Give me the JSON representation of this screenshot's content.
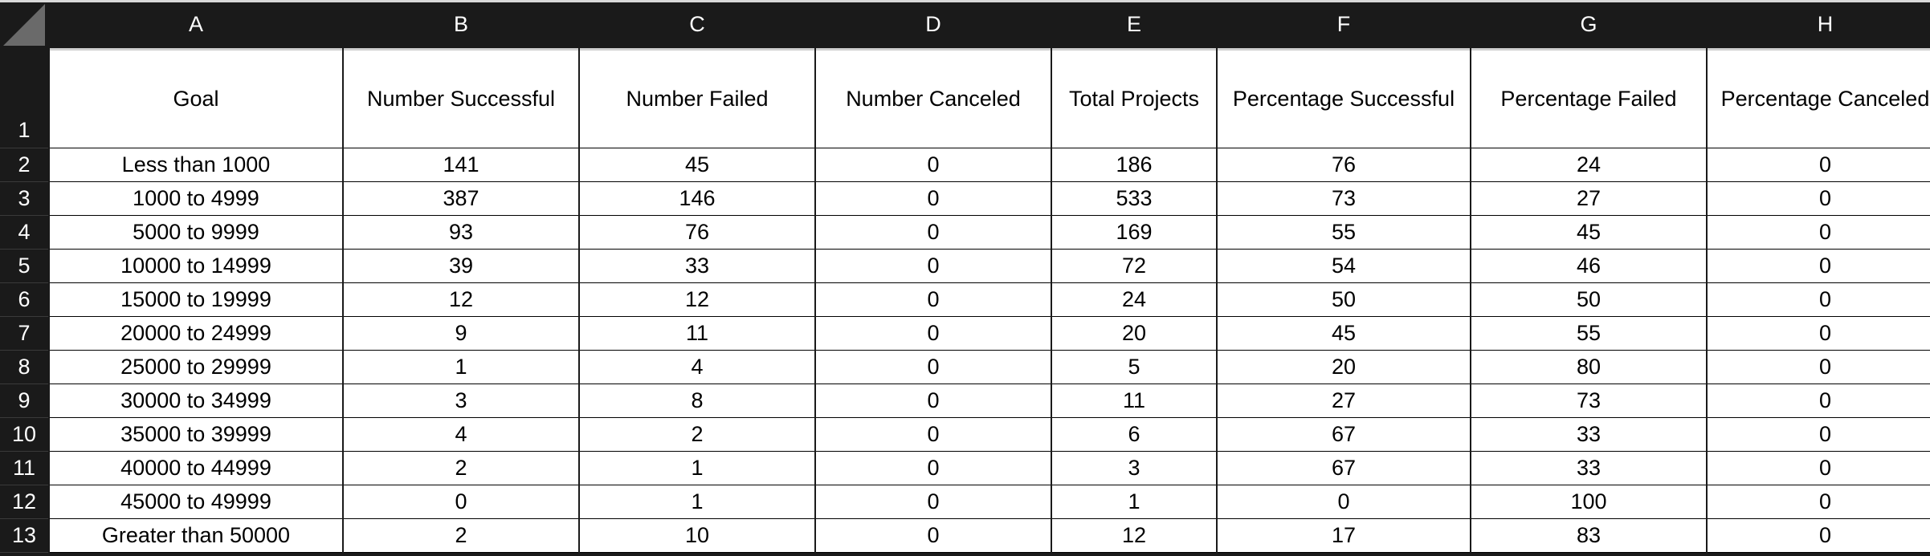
{
  "columns": [
    "A",
    "B",
    "C",
    "D",
    "E",
    "F",
    "G",
    "H"
  ],
  "row_numbers": [
    "1",
    "2",
    "3",
    "4",
    "5",
    "6",
    "7",
    "8",
    "9",
    "10",
    "11",
    "12",
    "13"
  ],
  "headers": [
    "Goal",
    "Number Successful",
    "Number Failed",
    "Number Canceled",
    "Total Projects",
    "Percentage Successful",
    "Percentage Failed",
    "Percentage Canceled"
  ],
  "rows": [
    [
      "Less than 1000",
      "141",
      "45",
      "0",
      "186",
      "76",
      "24",
      "0"
    ],
    [
      "1000 to 4999",
      "387",
      "146",
      "0",
      "533",
      "73",
      "27",
      "0"
    ],
    [
      "5000 to 9999",
      "93",
      "76",
      "0",
      "169",
      "55",
      "45",
      "0"
    ],
    [
      "10000 to 14999",
      "39",
      "33",
      "0",
      "72",
      "54",
      "46",
      "0"
    ],
    [
      "15000 to 19999",
      "12",
      "12",
      "0",
      "24",
      "50",
      "50",
      "0"
    ],
    [
      "20000 to 24999",
      "9",
      "11",
      "0",
      "20",
      "45",
      "55",
      "0"
    ],
    [
      "25000 to 29999",
      "1",
      "4",
      "0",
      "5",
      "20",
      "80",
      "0"
    ],
    [
      "30000 to 34999",
      "3",
      "8",
      "0",
      "11",
      "27",
      "73",
      "0"
    ],
    [
      "35000 to 39999",
      "4",
      "2",
      "0",
      "6",
      "67",
      "33",
      "0"
    ],
    [
      "40000 to 44999",
      "2",
      "1",
      "0",
      "3",
      "67",
      "33",
      "0"
    ],
    [
      "45000 to 49999",
      "0",
      "1",
      "0",
      "1",
      "0",
      "100",
      "0"
    ],
    [
      "Greater than 50000",
      "2",
      "10",
      "0",
      "12",
      "17",
      "83",
      "0"
    ]
  ],
  "colors": {
    "chrome": "#1a1a1a",
    "cell_background": "#ffffff",
    "header_text": "#ffffff",
    "cell_text": "#000000"
  }
}
